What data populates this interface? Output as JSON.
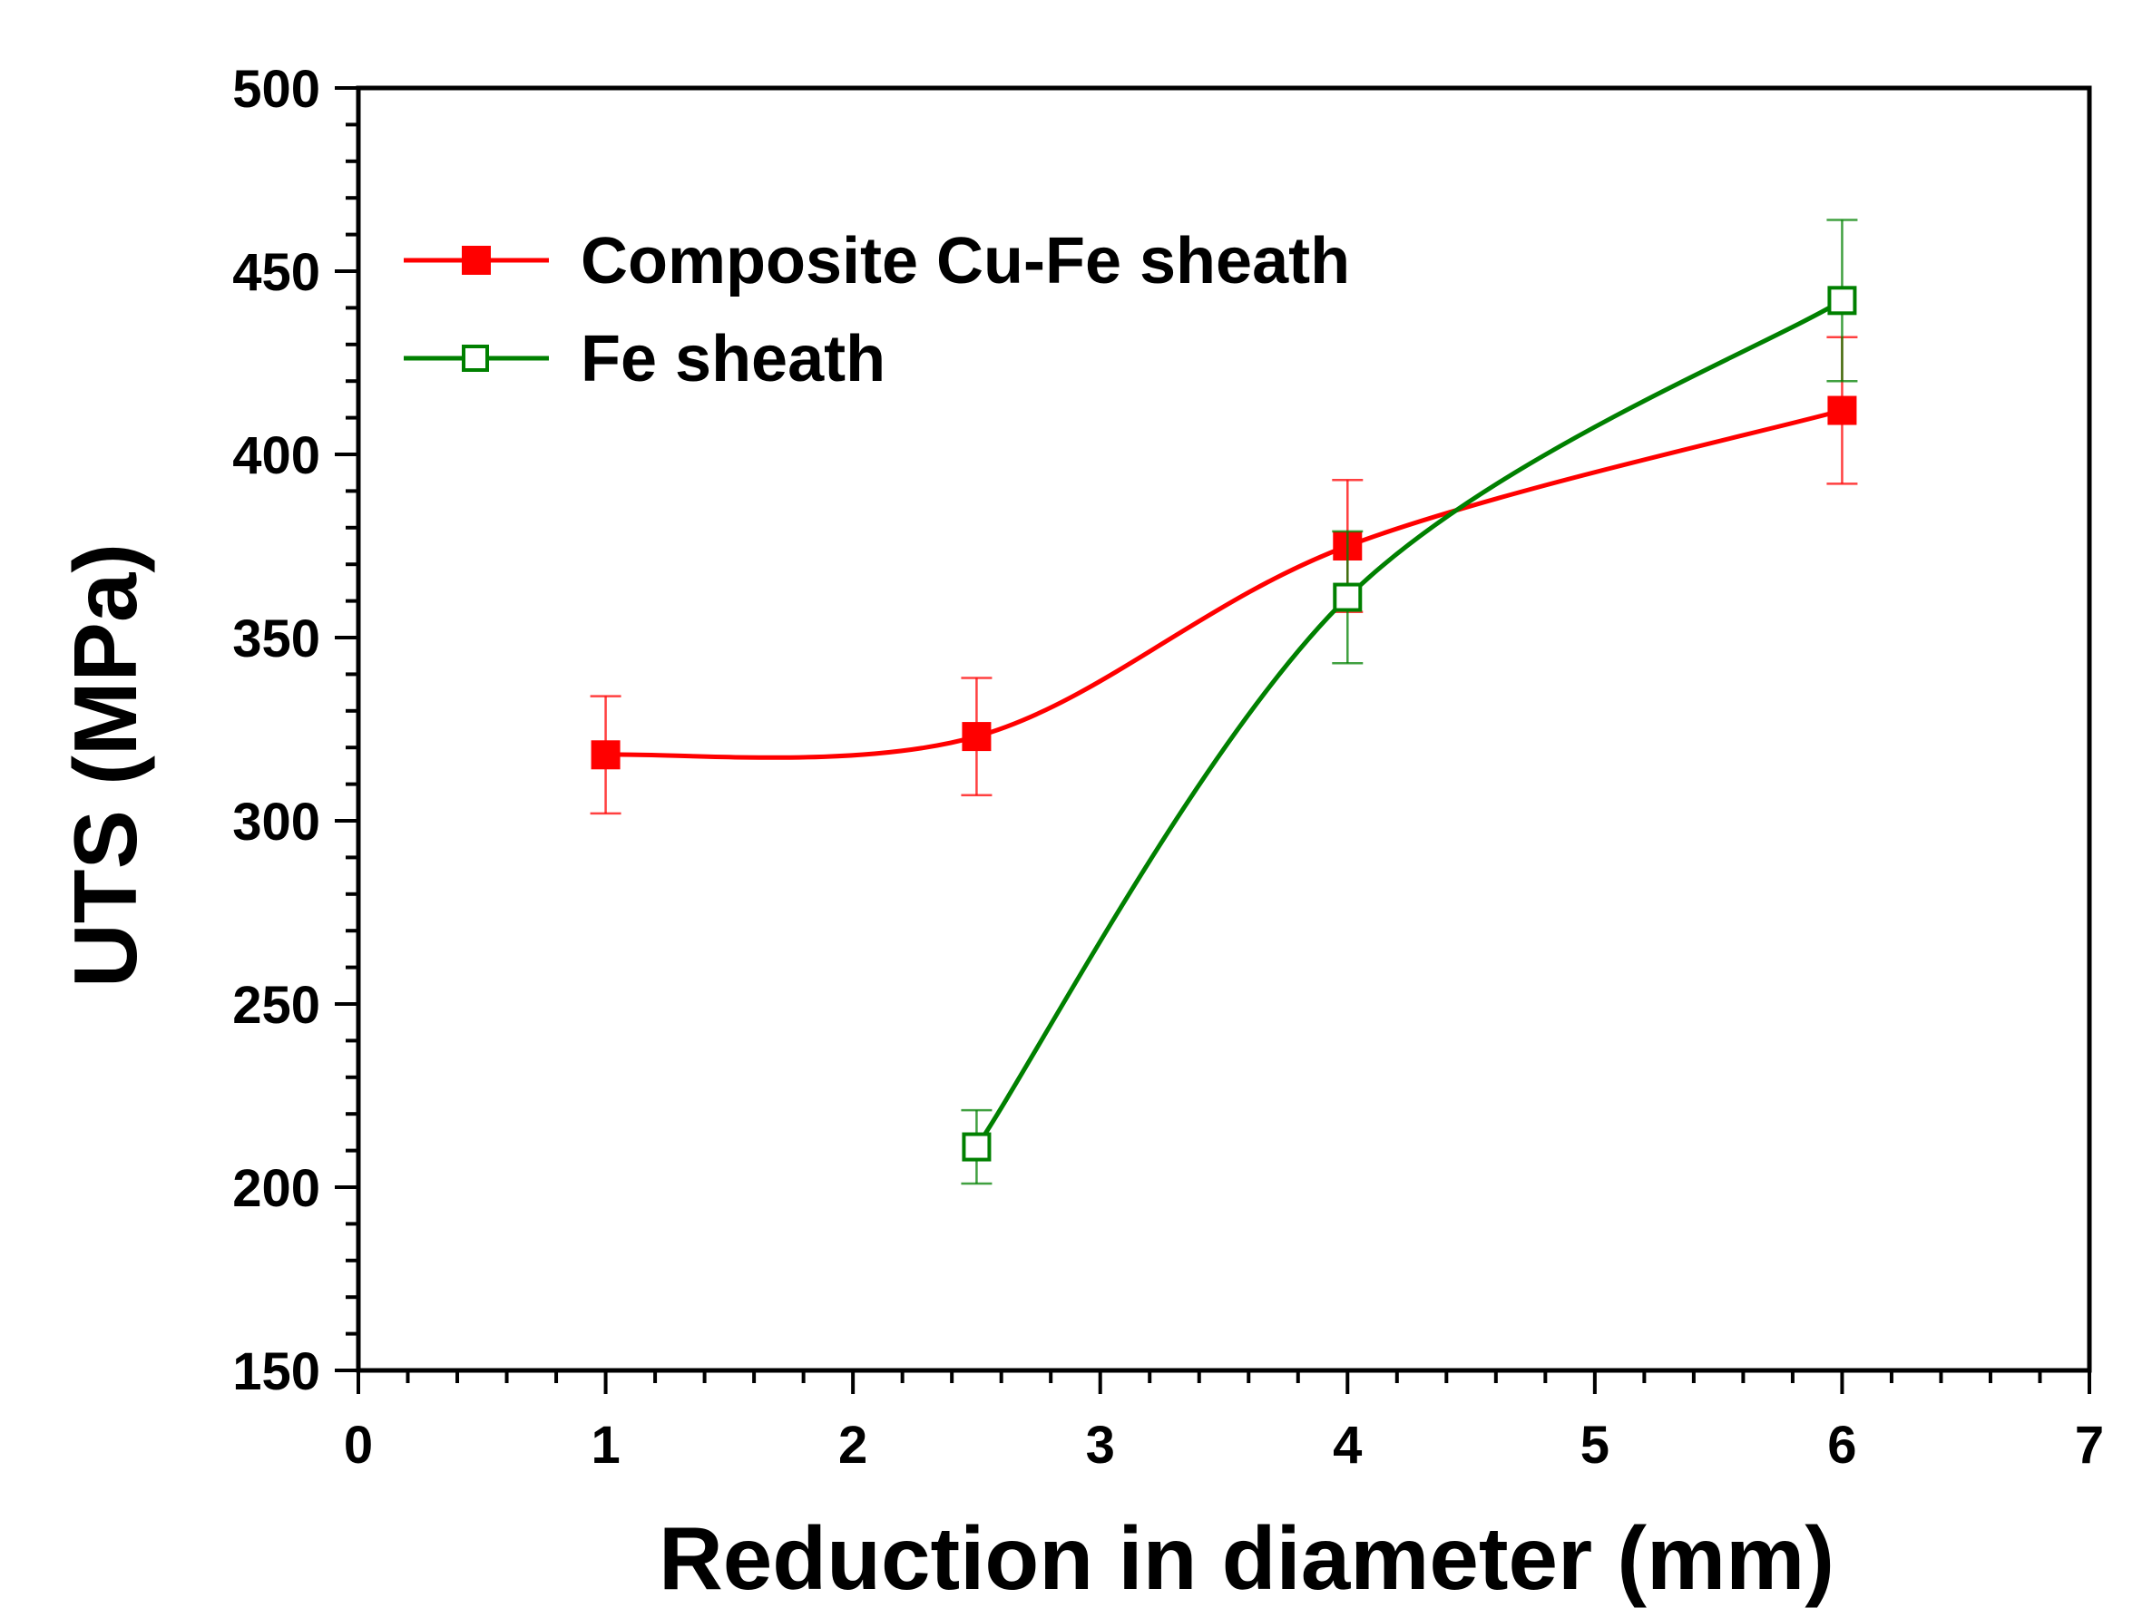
{
  "chart_data": {
    "type": "line",
    "title": "",
    "xlabel": "Reduction in diameter (mm)",
    "ylabel": "UTS (MPa)",
    "xlim": [
      0,
      7
    ],
    "ylim": [
      150,
      500
    ],
    "xticks": [
      0,
      1,
      2,
      3,
      4,
      5,
      6,
      7
    ],
    "yticks": [
      150,
      200,
      250,
      300,
      350,
      400,
      450,
      500
    ],
    "x_minor_step": 0.2,
    "y_minor_step": 10,
    "grid": false,
    "legend_position": "top-left",
    "series": [
      {
        "name": "Composite Cu-Fe sheath",
        "color": "#ff0000",
        "marker": "filled-square",
        "x": [
          1,
          2.5,
          4,
          6
        ],
        "y": [
          318,
          323,
          375,
          412
        ],
        "error": [
          16,
          16,
          18,
          20
        ]
      },
      {
        "name": "Fe sheath",
        "color": "#008000",
        "marker": "open-square",
        "x": [
          2.5,
          4,
          6
        ],
        "y": [
          211,
          361,
          442
        ],
        "error": [
          10,
          18,
          22
        ]
      }
    ]
  }
}
